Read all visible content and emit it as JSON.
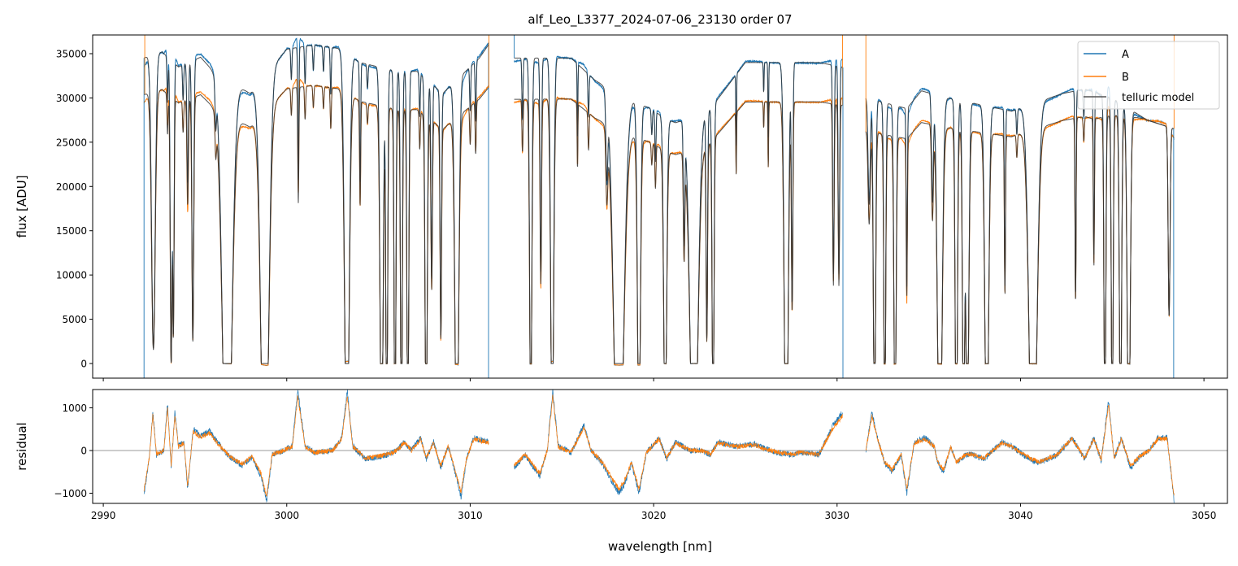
{
  "chart_data": [
    {
      "type": "line",
      "title": "alf_Leo_L3377_2024-07-06_23130  order 07",
      "xlabel": "",
      "ylabel": "flux [ADU]",
      "xlim": [
        2989.42,
        3051.28
      ],
      "ylim": [
        -1653,
        37112
      ],
      "xticks": [
        2990,
        3000,
        3010,
        3020,
        3030,
        3040,
        3050
      ],
      "yticks": [
        0,
        5000,
        10000,
        15000,
        20000,
        25000,
        30000,
        35000
      ],
      "ytick_labels": [
        "0",
        "5000",
        "10000",
        "15000",
        "20000",
        "25000",
        "30000",
        "35000"
      ],
      "legend": {
        "placement": "top-right",
        "entries": [
          "A",
          "B",
          "telluric model"
        ]
      },
      "colors": {
        "A": "#1f77b4",
        "B": "#ff7f0e",
        "model": "#333333"
      },
      "segments": [
        [
          2992.22,
          3011.0
        ],
        [
          3012.4,
          3030.3
        ],
        [
          3031.57,
          3048.37
        ]
      ],
      "continuum_A": [
        [
          2992.2,
          34500
        ],
        [
          2993.2,
          35200
        ],
        [
          2994.1,
          33500
        ],
        [
          2995.3,
          34600
        ],
        [
          2996,
          33000
        ],
        [
          2998,
          30500
        ],
        [
          3000,
          35500
        ],
        [
          3001.5,
          36000
        ],
        [
          3002.8,
          35600
        ],
        [
          3004,
          34000
        ],
        [
          3006,
          33000
        ],
        [
          3007.1,
          33000
        ],
        [
          3008.5,
          30500
        ],
        [
          3010.5,
          34500
        ],
        [
          3011,
          36000
        ],
        [
          3012.4,
          34500
        ],
        [
          3015.5,
          34500
        ],
        [
          3016.8,
          32000
        ],
        [
          3017.6,
          31000
        ],
        [
          3019.8,
          28800
        ],
        [
          3020.8,
          27500
        ],
        [
          3021.2,
          27200
        ],
        [
          3023,
          28500
        ],
        [
          3025,
          34000
        ],
        [
          3029,
          34000
        ],
        [
          3030.3,
          33500
        ],
        [
          3031.6,
          30000
        ],
        [
          3033.8,
          28800
        ],
        [
          3034.6,
          30800
        ],
        [
          3036,
          30000
        ],
        [
          3039.5,
          28500
        ],
        [
          3042.3,
          30500
        ],
        [
          3043.5,
          31000
        ],
        [
          3045,
          30000
        ],
        [
          3046.9,
          27500
        ],
        [
          3048.4,
          26500
        ]
      ],
      "ratio_B_over_A": [
        [
          2992,
          0.88
        ],
        [
          3012,
          0.865
        ],
        [
          3030,
          0.87
        ],
        [
          3040,
          0.9
        ],
        [
          3044,
          0.9
        ],
        [
          3046.8,
          1.0
        ],
        [
          3049,
          1.0
        ]
      ],
      "absorption_lines": [
        [
          2992.73,
          0.95,
          0.1
        ],
        [
          2993.5,
          0.15,
          0.03
        ],
        [
          2993.7,
          1.0,
          0.05
        ],
        [
          2993.82,
          0.9,
          0.04
        ],
        [
          2994.35,
          0.12,
          0.03
        ],
        [
          2994.6,
          0.4,
          0.04
        ],
        [
          2994.88,
          0.92,
          0.05
        ],
        [
          2996.13,
          0.15,
          0.04
        ],
        [
          2996.75,
          1.6,
          0.24
        ],
        [
          2998.8,
          1.6,
          0.2
        ],
        [
          3000.25,
          0.1,
          0.03
        ],
        [
          3000.63,
          0.42,
          0.03
        ],
        [
          3001.0,
          0.12,
          0.03
        ],
        [
          3001.45,
          0.08,
          0.03
        ],
        [
          3002.0,
          0.08,
          0.03
        ],
        [
          3002.4,
          0.15,
          0.03
        ],
        [
          3003.28,
          1.4,
          0.12
        ],
        [
          3004.0,
          0.4,
          0.03
        ],
        [
          3004.4,
          0.08,
          0.03
        ],
        [
          3005.17,
          1.4,
          0.08
        ],
        [
          3005.45,
          1.3,
          0.05
        ],
        [
          3005.9,
          1.3,
          0.05
        ],
        [
          3006.25,
          1.3,
          0.05
        ],
        [
          3006.6,
          1.3,
          0.05
        ],
        [
          3007.25,
          0.15,
          0.03
        ],
        [
          3007.6,
          1.3,
          0.06
        ],
        [
          3007.9,
          0.7,
          0.04
        ],
        [
          3008.4,
          0.9,
          0.04
        ],
        [
          3009.27,
          1.4,
          0.1
        ],
        [
          3010.0,
          0.15,
          0.03
        ],
        [
          3010.3,
          0.2,
          0.03
        ],
        [
          3012.85,
          0.2,
          0.03
        ],
        [
          3013.3,
          1.2,
          0.06
        ],
        [
          3013.85,
          0.7,
          0.04
        ],
        [
          3014.47,
          1.3,
          0.08
        ],
        [
          3015.85,
          0.25,
          0.02
        ],
        [
          3016.45,
          0.15,
          0.03
        ],
        [
          3017.45,
          0.3,
          0.05
        ],
        [
          3018.1,
          1.6,
          0.25
        ],
        [
          3019.2,
          1.3,
          0.08
        ],
        [
          3019.9,
          0.1,
          0.03
        ],
        [
          3020.1,
          0.2,
          0.03
        ],
        [
          3020.63,
          1.3,
          0.08
        ],
        [
          3021.66,
          0.5,
          0.04
        ],
        [
          3022.2,
          1.6,
          0.2
        ],
        [
          3022.9,
          0.9,
          0.04
        ],
        [
          3023.24,
          1.3,
          0.05
        ],
        [
          3024.5,
          0.25,
          0.02
        ],
        [
          3026.0,
          0.1,
          0.02
        ],
        [
          3026.25,
          0.25,
          0.02
        ],
        [
          3027.23,
          1.5,
          0.1
        ],
        [
          3027.55,
          0.8,
          0.04
        ],
        [
          3029.8,
          0.7,
          0.04
        ],
        [
          3030.1,
          0.7,
          0.04
        ],
        [
          3031.75,
          0.4,
          0.06
        ],
        [
          3032.04,
          1.3,
          0.06
        ],
        [
          3032.6,
          1.3,
          0.05
        ],
        [
          3033.16,
          1.3,
          0.06
        ],
        [
          3033.8,
          0.7,
          0.03
        ],
        [
          3035.2,
          0.4,
          0.05
        ],
        [
          3035.6,
          1.5,
          0.12
        ],
        [
          3036.5,
          1.4,
          0.06
        ],
        [
          3036.9,
          1.4,
          0.06
        ],
        [
          3037.1,
          1.3,
          0.08
        ],
        [
          3038.16,
          1.4,
          0.1
        ],
        [
          3039.15,
          0.7,
          0.03
        ],
        [
          3039.8,
          0.1,
          0.03
        ],
        [
          3040.68,
          1.6,
          0.2
        ],
        [
          3043.0,
          0.75,
          0.03
        ],
        [
          3043.45,
          0.1,
          0.03
        ],
        [
          3044.0,
          0.6,
          0.03
        ],
        [
          3044.6,
          1.3,
          0.05
        ],
        [
          3045.0,
          1.3,
          0.05
        ],
        [
          3045.45,
          1.3,
          0.06
        ],
        [
          3045.9,
          1.4,
          0.08
        ],
        [
          3048.1,
          0.8,
          0.05
        ]
      ],
      "edge_spikes": [
        {
          "x": 2992.22,
          "series": "A",
          "to": -1653
        },
        {
          "x": 2992.26,
          "series": "B",
          "to": 37112
        },
        {
          "x": 3011.0,
          "series": "A",
          "to": -1653
        },
        {
          "x": 3011.02,
          "series": "B",
          "to": 37112
        },
        {
          "x": 3012.4,
          "series": "A",
          "to": 37112
        },
        {
          "x": 3030.3,
          "series": "B",
          "to": 37112
        },
        {
          "x": 3030.32,
          "series": "A",
          "to": -1653
        },
        {
          "x": 3031.57,
          "series": "B",
          "to": 37112
        },
        {
          "x": 3048.37,
          "series": "B",
          "to": 37112
        },
        {
          "x": 3048.35,
          "series": "A",
          "to": -1653
        }
      ]
    },
    {
      "type": "line",
      "title": "",
      "xlabel": "wavelength [nm]",
      "ylabel": "residual",
      "xlim": [
        2989.42,
        3051.28
      ],
      "ylim": [
        -1238,
        1428
      ],
      "xticks": [
        2990,
        3000,
        3010,
        3020,
        3030,
        3040,
        3050
      ],
      "xtick_labels": [
        "2990",
        "3000",
        "3010",
        "3020",
        "3030",
        "3040",
        "3050"
      ],
      "yticks": [
        -1000,
        0,
        1000
      ],
      "ytick_labels": [
        "−1000",
        "0",
        "1000"
      ],
      "zero_line": 0,
      "residual_knots": [
        [
          2992.2,
          -1100
        ],
        [
          2992.5,
          -200
        ],
        [
          2992.7,
          900
        ],
        [
          2992.9,
          -100
        ],
        [
          2993.3,
          0
        ],
        [
          2993.5,
          1100
        ],
        [
          2993.7,
          -400
        ],
        [
          2993.9,
          900
        ],
        [
          2994.1,
          100
        ],
        [
          2994.4,
          200
        ],
        [
          2994.6,
          -900
        ],
        [
          2994.9,
          500
        ],
        [
          2995.3,
          350
        ],
        [
          2995.8,
          450
        ],
        [
          2996.2,
          200
        ],
        [
          2996.8,
          -100
        ],
        [
          2997.2,
          -250
        ],
        [
          2997.6,
          -350
        ],
        [
          2998.1,
          -150
        ],
        [
          2998.6,
          -600
        ],
        [
          2998.9,
          -1200
        ],
        [
          2999.2,
          -100
        ],
        [
          2999.8,
          0
        ],
        [
          3000.3,
          100
        ],
        [
          3000.6,
          1400
        ],
        [
          3001,
          100
        ],
        [
          3001.5,
          -50
        ],
        [
          3002.5,
          0
        ],
        [
          3003,
          300
        ],
        [
          3003.3,
          1400
        ],
        [
          3003.6,
          100
        ],
        [
          3004.3,
          -200
        ],
        [
          3005,
          -150
        ],
        [
          3005.5,
          -100
        ],
        [
          3006,
          0
        ],
        [
          3006.4,
          200
        ],
        [
          3006.8,
          0
        ],
        [
          3007.3,
          300
        ],
        [
          3007.6,
          -200
        ],
        [
          3008,
          200
        ],
        [
          3008.4,
          -400
        ],
        [
          3008.8,
          100
        ],
        [
          3009.3,
          -700
        ],
        [
          3009.5,
          -1100
        ],
        [
          3009.8,
          -200
        ],
        [
          3010.2,
          300
        ],
        [
          3011,
          200
        ],
        [
          3012.4,
          -400
        ],
        [
          3013,
          -100
        ],
        [
          3013.3,
          -300
        ],
        [
          3013.8,
          -600
        ],
        [
          3014.2,
          0
        ],
        [
          3014.5,
          1400
        ],
        [
          3014.8,
          100
        ],
        [
          3015.5,
          -50
        ],
        [
          3016.2,
          600
        ],
        [
          3016.6,
          0
        ],
        [
          3017.2,
          -300
        ],
        [
          3017.7,
          -700
        ],
        [
          3018.1,
          -1000
        ],
        [
          3018.4,
          -800
        ],
        [
          3018.8,
          -300
        ],
        [
          3019.2,
          -1000
        ],
        [
          3019.6,
          -50
        ],
        [
          3020.3,
          300
        ],
        [
          3020.7,
          -200
        ],
        [
          3021.2,
          200
        ],
        [
          3022,
          0
        ],
        [
          3022.6,
          0
        ],
        [
          3023.1,
          -100
        ],
        [
          3023.5,
          200
        ],
        [
          3024.5,
          100
        ],
        [
          3025.5,
          150
        ],
        [
          3026,
          50
        ],
        [
          3026.8,
          -50
        ],
        [
          3027.5,
          -100
        ],
        [
          3028,
          -50
        ],
        [
          3029,
          -100
        ],
        [
          3029.8,
          600
        ],
        [
          3030.3,
          900
        ],
        [
          3031.57,
          0
        ],
        [
          3031.9,
          900
        ],
        [
          3032.2,
          300
        ],
        [
          3032.6,
          -300
        ],
        [
          3033,
          -500
        ],
        [
          3033.5,
          -100
        ],
        [
          3033.8,
          -1000
        ],
        [
          3034.2,
          200
        ],
        [
          3034.8,
          300
        ],
        [
          3035.3,
          100
        ],
        [
          3035.5,
          -300
        ],
        [
          3035.8,
          -500
        ],
        [
          3036.2,
          100
        ],
        [
          3036.5,
          -300
        ],
        [
          3037,
          -100
        ],
        [
          3037.4,
          -100
        ],
        [
          3038,
          -200
        ],
        [
          3038.5,
          0
        ],
        [
          3039,
          200
        ],
        [
          3039.5,
          100
        ],
        [
          3040.5,
          -200
        ],
        [
          3041,
          -300
        ],
        [
          3042,
          -100
        ],
        [
          3042.8,
          300
        ],
        [
          3043.5,
          -200
        ],
        [
          3044,
          300
        ],
        [
          3044.4,
          -250
        ],
        [
          3044.8,
          1200
        ],
        [
          3045.1,
          -200
        ],
        [
          3045.5,
          300
        ],
        [
          3046,
          -400
        ],
        [
          3046.5,
          -150
        ],
        [
          3047,
          0
        ],
        [
          3047.5,
          300
        ],
        [
          3048,
          300
        ],
        [
          3048.37,
          -1200
        ]
      ]
    }
  ]
}
